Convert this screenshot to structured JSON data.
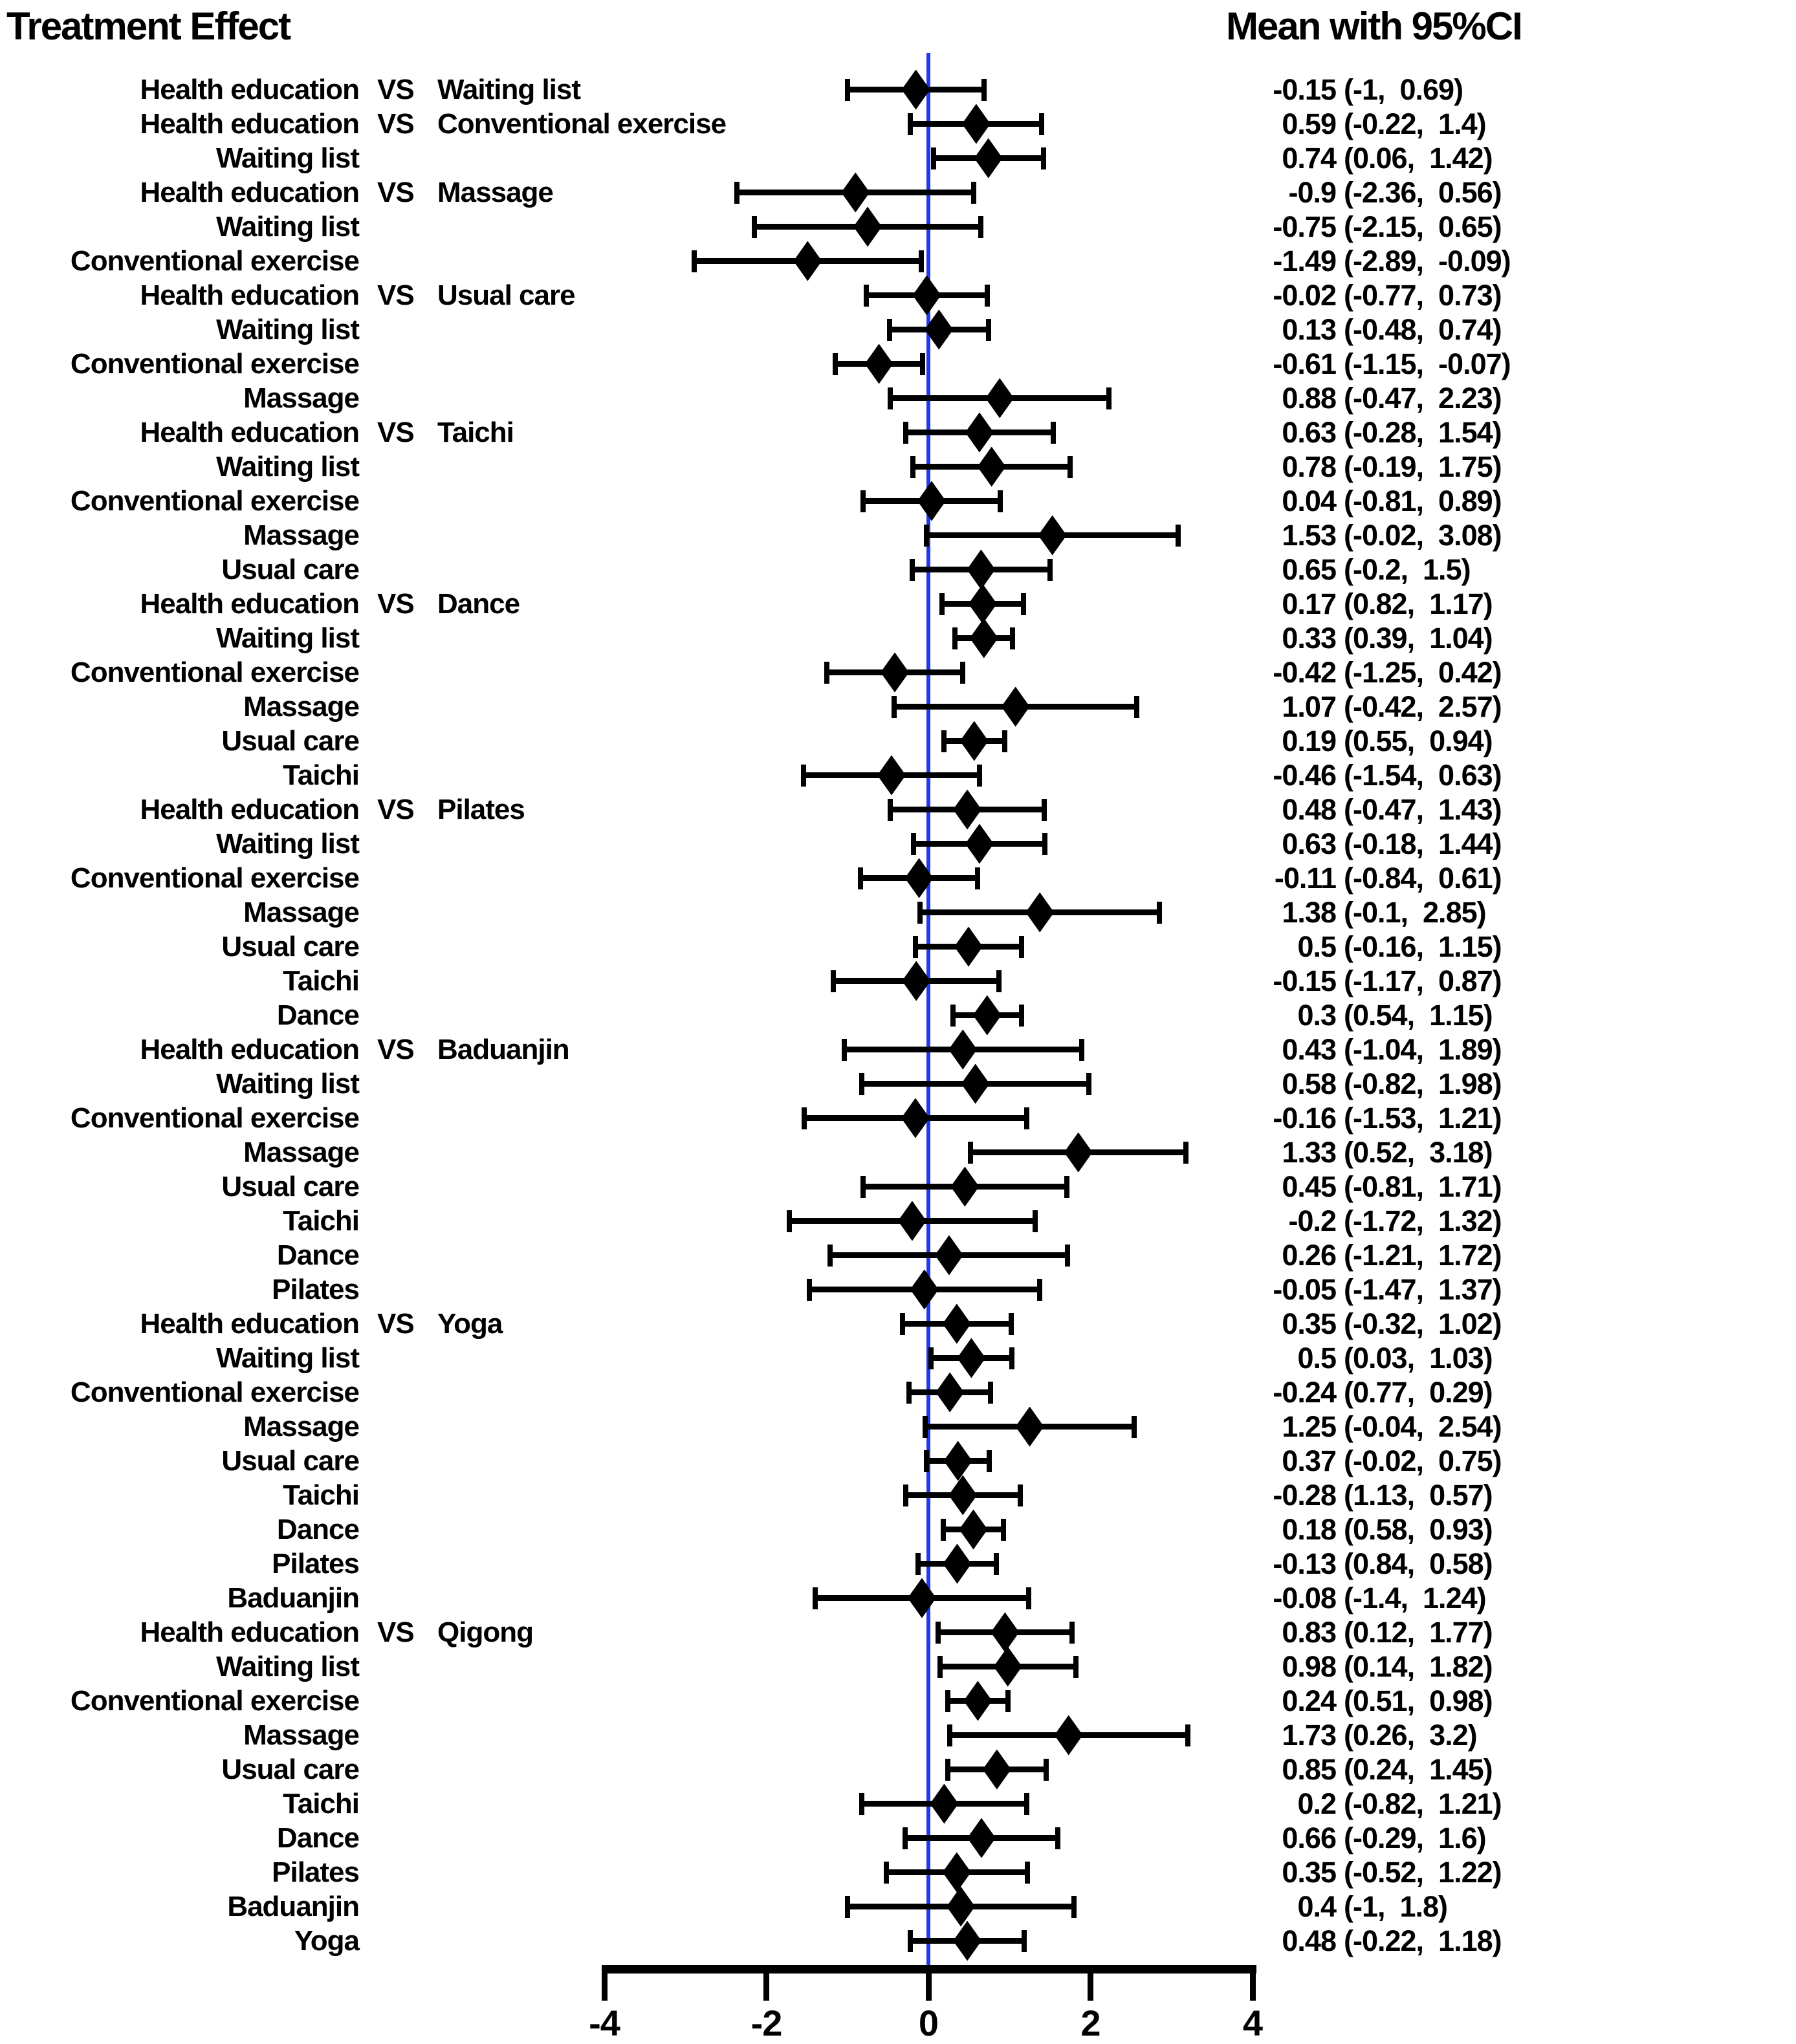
{
  "header": {
    "left_title": "Treatment Effect",
    "right_title": "Mean with 95%CI"
  },
  "colors": {
    "reference_line_blue": "#2038F0",
    "ink": "#000000",
    "background": "#ffffff"
  },
  "chart_data": {
    "type": "scatter",
    "subtype": "forest-plot-mean-95ci",
    "title": "Treatment Effect",
    "value_column_title": "Mean with 95%CI",
    "xlabel": "",
    "xlim": [
      -4,
      4
    ],
    "x_ticks": [
      "-4",
      "-2",
      "0",
      "2",
      "4"
    ],
    "reference_line": 0,
    "grid": false,
    "legend_position": "none",
    "vs_separator": "VS",
    "rows": [
      {
        "treatment": "Health education",
        "vs": "Waiting list",
        "mean": "-0.15",
        "lo": "-1",
        "hi": "0.69"
      },
      {
        "treatment": "Health education",
        "vs": "Conventional exercise",
        "mean": "0.59",
        "lo": "-0.22",
        "hi": "1.4"
      },
      {
        "treatment": "Waiting list",
        "vs": "",
        "mean": "0.74",
        "lo": "0.06",
        "hi": "1.42"
      },
      {
        "treatment": "Health education",
        "vs": "Massage",
        "mean": "-0.9",
        "lo": "-2.36",
        "hi": "0.56"
      },
      {
        "treatment": "Waiting list",
        "vs": "",
        "mean": "-0.75",
        "lo": "-2.15",
        "hi": "0.65"
      },
      {
        "treatment": "Conventional exercise",
        "vs": "",
        "mean": "-1.49",
        "lo": "-2.89",
        "hi": "-0.09"
      },
      {
        "treatment": "Health education",
        "vs": "Usual care",
        "mean": "-0.02",
        "lo": "-0.77",
        "hi": "0.73"
      },
      {
        "treatment": "Waiting list",
        "vs": "",
        "mean": "0.13",
        "lo": "-0.48",
        "hi": "0.74"
      },
      {
        "treatment": "Conventional exercise",
        "vs": "",
        "mean": "-0.61",
        "lo": "-1.15",
        "hi": "-0.07"
      },
      {
        "treatment": "Massage",
        "vs": "",
        "mean": "0.88",
        "lo": "-0.47",
        "hi": "2.23"
      },
      {
        "treatment": "Health education",
        "vs": "Taichi",
        "mean": "0.63",
        "lo": "-0.28",
        "hi": "1.54"
      },
      {
        "treatment": "Waiting list",
        "vs": "",
        "mean": "0.78",
        "lo": "-0.19",
        "hi": "1.75"
      },
      {
        "treatment": "Conventional exercise",
        "vs": "",
        "mean": "0.04",
        "lo": "-0.81",
        "hi": "0.89"
      },
      {
        "treatment": "Massage",
        "vs": "",
        "mean": "1.53",
        "lo": "-0.02",
        "hi": "3.08"
      },
      {
        "treatment": "Usual care",
        "vs": "",
        "mean": "0.65",
        "lo": "-0.2",
        "hi": "1.5"
      },
      {
        "treatment": "Health education",
        "vs": "Dance",
        "mean": "0.17",
        "lo": "0.82",
        "hi": "1.17"
      },
      {
        "treatment": "Waiting list",
        "vs": "",
        "mean": "0.33",
        "lo": "0.39",
        "hi": "1.04"
      },
      {
        "treatment": "Conventional exercise",
        "vs": "",
        "mean": "-0.42",
        "lo": "-1.25",
        "hi": "0.42"
      },
      {
        "treatment": "Massage",
        "vs": "",
        "mean": "1.07",
        "lo": "-0.42",
        "hi": "2.57"
      },
      {
        "treatment": "Usual care",
        "vs": "",
        "mean": "0.19",
        "lo": "0.55",
        "hi": "0.94"
      },
      {
        "treatment": "Taichi",
        "vs": "",
        "mean": "-0.46",
        "lo": "-1.54",
        "hi": "0.63"
      },
      {
        "treatment": "Health education",
        "vs": "Pilates",
        "mean": "0.48",
        "lo": "-0.47",
        "hi": "1.43"
      },
      {
        "treatment": "Waiting list",
        "vs": "",
        "mean": "0.63",
        "lo": "-0.18",
        "hi": "1.44"
      },
      {
        "treatment": "Conventional exercise",
        "vs": "",
        "mean": "-0.11",
        "lo": "-0.84",
        "hi": "0.61"
      },
      {
        "treatment": "Massage",
        "vs": "",
        "mean": "1.38",
        "lo": "-0.1",
        "hi": "2.85"
      },
      {
        "treatment": "Usual care",
        "vs": "",
        "mean": "0.5",
        "lo": "-0.16",
        "hi": "1.15"
      },
      {
        "treatment": "Taichi",
        "vs": "",
        "mean": "-0.15",
        "lo": "-1.17",
        "hi": "0.87"
      },
      {
        "treatment": "Dance",
        "vs": "",
        "mean": "0.3",
        "lo": "0.54",
        "hi": "1.15"
      },
      {
        "treatment": "Health education",
        "vs": "Baduanjin",
        "mean": "0.43",
        "lo": "-1.04",
        "hi": "1.89"
      },
      {
        "treatment": "Waiting list",
        "vs": "",
        "mean": "0.58",
        "lo": "-0.82",
        "hi": "1.98"
      },
      {
        "treatment": "Conventional exercise",
        "vs": "",
        "mean": "-0.16",
        "lo": "-1.53",
        "hi": "1.21"
      },
      {
        "treatment": "Massage",
        "vs": "",
        "mean": "1.33",
        "lo": "0.52",
        "hi": "3.18"
      },
      {
        "treatment": "Usual care",
        "vs": "",
        "mean": "0.45",
        "lo": "-0.81",
        "hi": "1.71"
      },
      {
        "treatment": "Taichi",
        "vs": "",
        "mean": "-0.2",
        "lo": "-1.72",
        "hi": "1.32"
      },
      {
        "treatment": "Dance",
        "vs": "",
        "mean": "0.26",
        "lo": "-1.21",
        "hi": "1.72"
      },
      {
        "treatment": "Pilates",
        "vs": "",
        "mean": "-0.05",
        "lo": "-1.47",
        "hi": "1.37"
      },
      {
        "treatment": "Health education",
        "vs": "Yoga",
        "mean": "0.35",
        "lo": "-0.32",
        "hi": "1.02"
      },
      {
        "treatment": "Waiting list",
        "vs": "",
        "mean": "0.5",
        "lo": "0.03",
        "hi": "1.03"
      },
      {
        "treatment": "Conventional exercise",
        "vs": "",
        "mean": "-0.24",
        "lo": "0.77",
        "hi": "0.29"
      },
      {
        "treatment": "Massage",
        "vs": "",
        "mean": "1.25",
        "lo": "-0.04",
        "hi": "2.54"
      },
      {
        "treatment": "Usual care",
        "vs": "",
        "mean": "0.37",
        "lo": "-0.02",
        "hi": "0.75"
      },
      {
        "treatment": "Taichi",
        "vs": "",
        "mean": "-0.28",
        "lo": "1.13",
        "hi": "0.57"
      },
      {
        "treatment": "Dance",
        "vs": "",
        "mean": "0.18",
        "lo": "0.58",
        "hi": "0.93"
      },
      {
        "treatment": "Pilates",
        "vs": "",
        "mean": "-0.13",
        "lo": "0.84",
        "hi": "0.58"
      },
      {
        "treatment": "Baduanjin",
        "vs": "",
        "mean": "-0.08",
        "lo": "-1.4",
        "hi": "1.24"
      },
      {
        "treatment": "Health education",
        "vs": "Qigong",
        "mean": "0.83",
        "lo": "0.12",
        "hi": "1.77"
      },
      {
        "treatment": "Waiting list",
        "vs": "",
        "mean": "0.98",
        "lo": "0.14",
        "hi": "1.82"
      },
      {
        "treatment": "Conventional exercise",
        "vs": "",
        "mean": "0.24",
        "lo": "0.51",
        "hi": "0.98"
      },
      {
        "treatment": "Massage",
        "vs": "",
        "mean": "1.73",
        "lo": "0.26",
        "hi": "3.2"
      },
      {
        "treatment": "Usual care",
        "vs": "",
        "mean": "0.85",
        "lo": "0.24",
        "hi": "1.45"
      },
      {
        "treatment": "Taichi",
        "vs": "",
        "mean": "0.2",
        "lo": "-0.82",
        "hi": "1.21"
      },
      {
        "treatment": "Dance",
        "vs": "",
        "mean": "0.66",
        "lo": "-0.29",
        "hi": "1.6"
      },
      {
        "treatment": "Pilates",
        "vs": "",
        "mean": "0.35",
        "lo": "-0.52",
        "hi": "1.22"
      },
      {
        "treatment": "Baduanjin",
        "vs": "",
        "mean": "0.4",
        "lo": "-1",
        "hi": "1.8"
      },
      {
        "treatment": "Yoga",
        "vs": "",
        "mean": "0.48",
        "lo": "-0.22",
        "hi": "1.18"
      }
    ]
  }
}
